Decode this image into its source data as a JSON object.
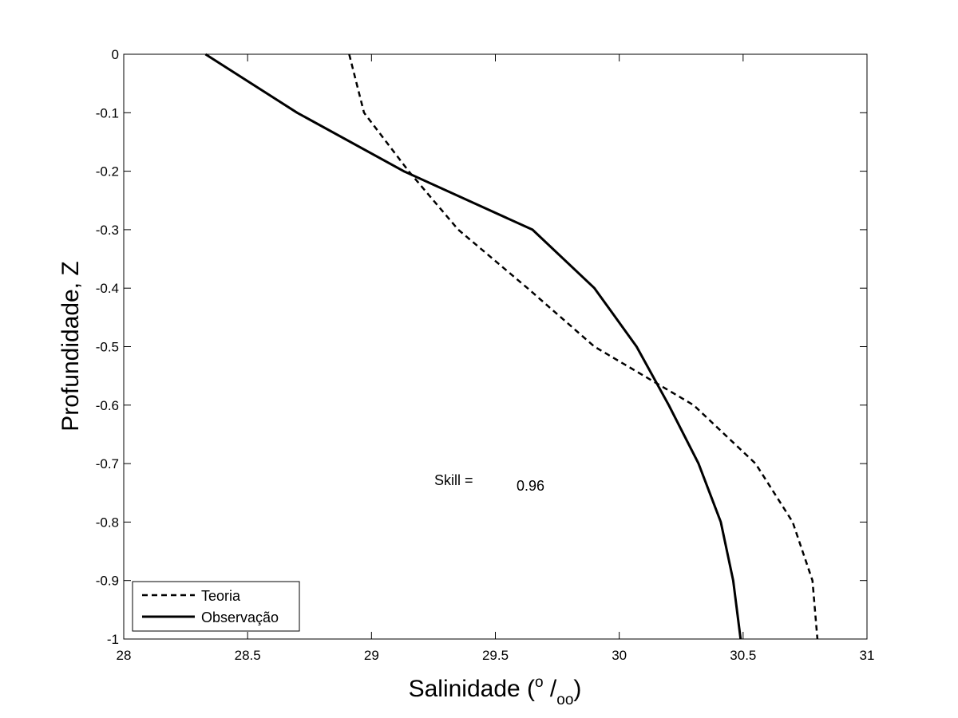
{
  "chart_data": {
    "type": "line",
    "title": "",
    "xlabel_main": "Salinidade (",
    "xlabel_sup": "o",
    "xlabel_slash": " /",
    "xlabel_sub": "oo",
    "xlabel_close": ")",
    "ylabel": "Profundidade, Z",
    "xlim": [
      28,
      31
    ],
    "ylim": [
      -1,
      0
    ],
    "xticks": [
      "28",
      "28.5",
      "29",
      "29.5",
      "30",
      "30.5",
      "31"
    ],
    "yticks": [
      "0",
      "-0.1",
      "-0.2",
      "-0.3",
      "-0.4",
      "-0.5",
      "-0.6",
      "-0.7",
      "-0.8",
      "-0.9",
      "-1"
    ],
    "grid": false,
    "legend_position": "bottom-left",
    "series": [
      {
        "name": "Teoria",
        "style": "dashed",
        "color": "#000000",
        "points": [
          [
            28.91,
            0
          ],
          [
            28.97,
            -0.1
          ],
          [
            29.15,
            -0.2
          ],
          [
            29.35,
            -0.3
          ],
          [
            29.63,
            -0.4
          ],
          [
            29.9,
            -0.5
          ],
          [
            30.3,
            -0.6
          ],
          [
            30.55,
            -0.7
          ],
          [
            30.7,
            -0.8
          ],
          [
            30.78,
            -0.9
          ],
          [
            30.8,
            -1.0
          ]
        ]
      },
      {
        "name": "Observação",
        "style": "solid",
        "color": "#000000",
        "points": [
          [
            28.33,
            0
          ],
          [
            28.7,
            -0.1
          ],
          [
            29.13,
            -0.2
          ],
          [
            29.65,
            -0.3
          ],
          [
            29.9,
            -0.4
          ],
          [
            30.07,
            -0.5
          ],
          [
            30.2,
            -0.6
          ],
          [
            30.32,
            -0.7
          ],
          [
            30.41,
            -0.8
          ],
          [
            30.46,
            -0.9
          ],
          [
            30.49,
            -1.0
          ]
        ]
      }
    ],
    "annotations": {
      "skill_label": "Skill =",
      "skill_value": "0.96"
    }
  }
}
